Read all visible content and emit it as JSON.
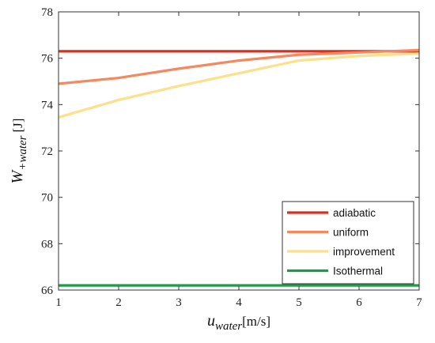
{
  "chart_data": {
    "type": "line",
    "x": [
      1,
      2,
      3,
      4,
      5,
      6,
      7
    ],
    "xlim": [
      1,
      7
    ],
    "ylim": [
      66,
      78
    ],
    "xticks": [
      1,
      2,
      3,
      4,
      5,
      6,
      7
    ],
    "yticks": [
      66,
      68,
      70,
      72,
      74,
      76,
      78
    ],
    "xlabel": {
      "var": "u",
      "sub": "water",
      "unit": "[m/s]"
    },
    "ylabel": {
      "var": "W",
      "sub": "+water",
      "unit": "[J]"
    },
    "legend_position": "bottom-right",
    "grid": false,
    "series": [
      {
        "name": "adiabatic",
        "color": "#d7301f",
        "values": [
          76.3,
          76.3,
          76.3,
          76.3,
          76.3,
          76.3,
          76.3
        ]
      },
      {
        "name": "uniform",
        "color": "#f4895f",
        "values": [
          74.9,
          75.15,
          75.55,
          75.9,
          76.15,
          76.25,
          76.35
        ]
      },
      {
        "name": "improvement",
        "color": "#fde08a",
        "values": [
          73.45,
          74.2,
          74.8,
          75.35,
          75.9,
          76.1,
          76.2
        ]
      },
      {
        "name": "Isothermal",
        "color": "#1f9a4a",
        "values": [
          66.2,
          66.2,
          66.2,
          66.2,
          66.2,
          66.2,
          66.2
        ]
      }
    ]
  }
}
